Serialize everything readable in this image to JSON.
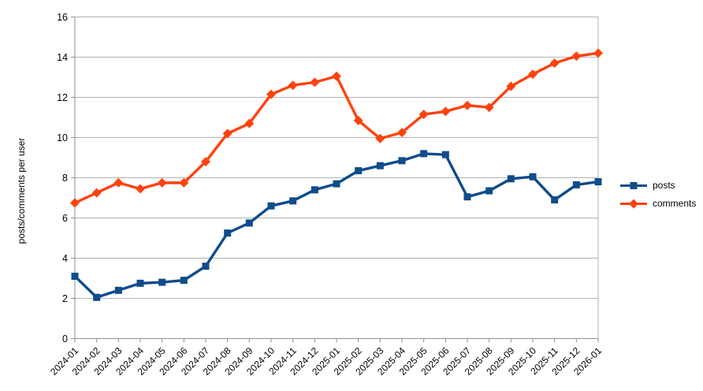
{
  "chart_data": {
    "type": "line",
    "title": "",
    "xlabel": "",
    "ylabel": "posts/comments per user",
    "ylim": [
      0,
      16
    ],
    "ytick_step": 2,
    "grid": "horizontal",
    "legend_position": "right",
    "axis_color": "#8f8f8f",
    "gridline_color": "#b3b3b3",
    "label_color": "#000000",
    "categories": [
      "2024-01",
      "2024-02",
      "2024-03",
      "2024-04",
      "2024-05",
      "2024-06",
      "2024-07",
      "2024-08",
      "2024-09",
      "2024-10",
      "2024-11",
      "2024-12",
      "2025-01",
      "2025-02",
      "2025-03",
      "2025-04",
      "2025-05",
      "2025-06",
      "2025-07",
      "2025-08",
      "2025-09",
      "2025-10",
      "2025-11",
      "2025-12",
      "2026-01"
    ],
    "series": [
      {
        "name": "posts",
        "color": "#0f4c8a",
        "marker": "square",
        "values": [
          3.1,
          2.05,
          2.4,
          2.75,
          2.8,
          2.9,
          3.6,
          5.25,
          5.75,
          6.6,
          6.85,
          7.4,
          7.7,
          8.35,
          8.6,
          8.85,
          9.2,
          9.15,
          7.05,
          7.35,
          7.95,
          8.05,
          6.9,
          7.65,
          7.8
        ]
      },
      {
        "name": "comments",
        "color": "#ff420e",
        "marker": "diamond",
        "values": [
          6.75,
          7.25,
          7.75,
          7.45,
          7.75,
          7.75,
          8.8,
          10.2,
          10.7,
          12.15,
          12.6,
          12.75,
          13.05,
          10.85,
          9.95,
          10.25,
          11.15,
          11.3,
          11.6,
          11.5,
          12.55,
          13.15,
          13.7,
          14.05,
          14.2
        ]
      }
    ]
  }
}
